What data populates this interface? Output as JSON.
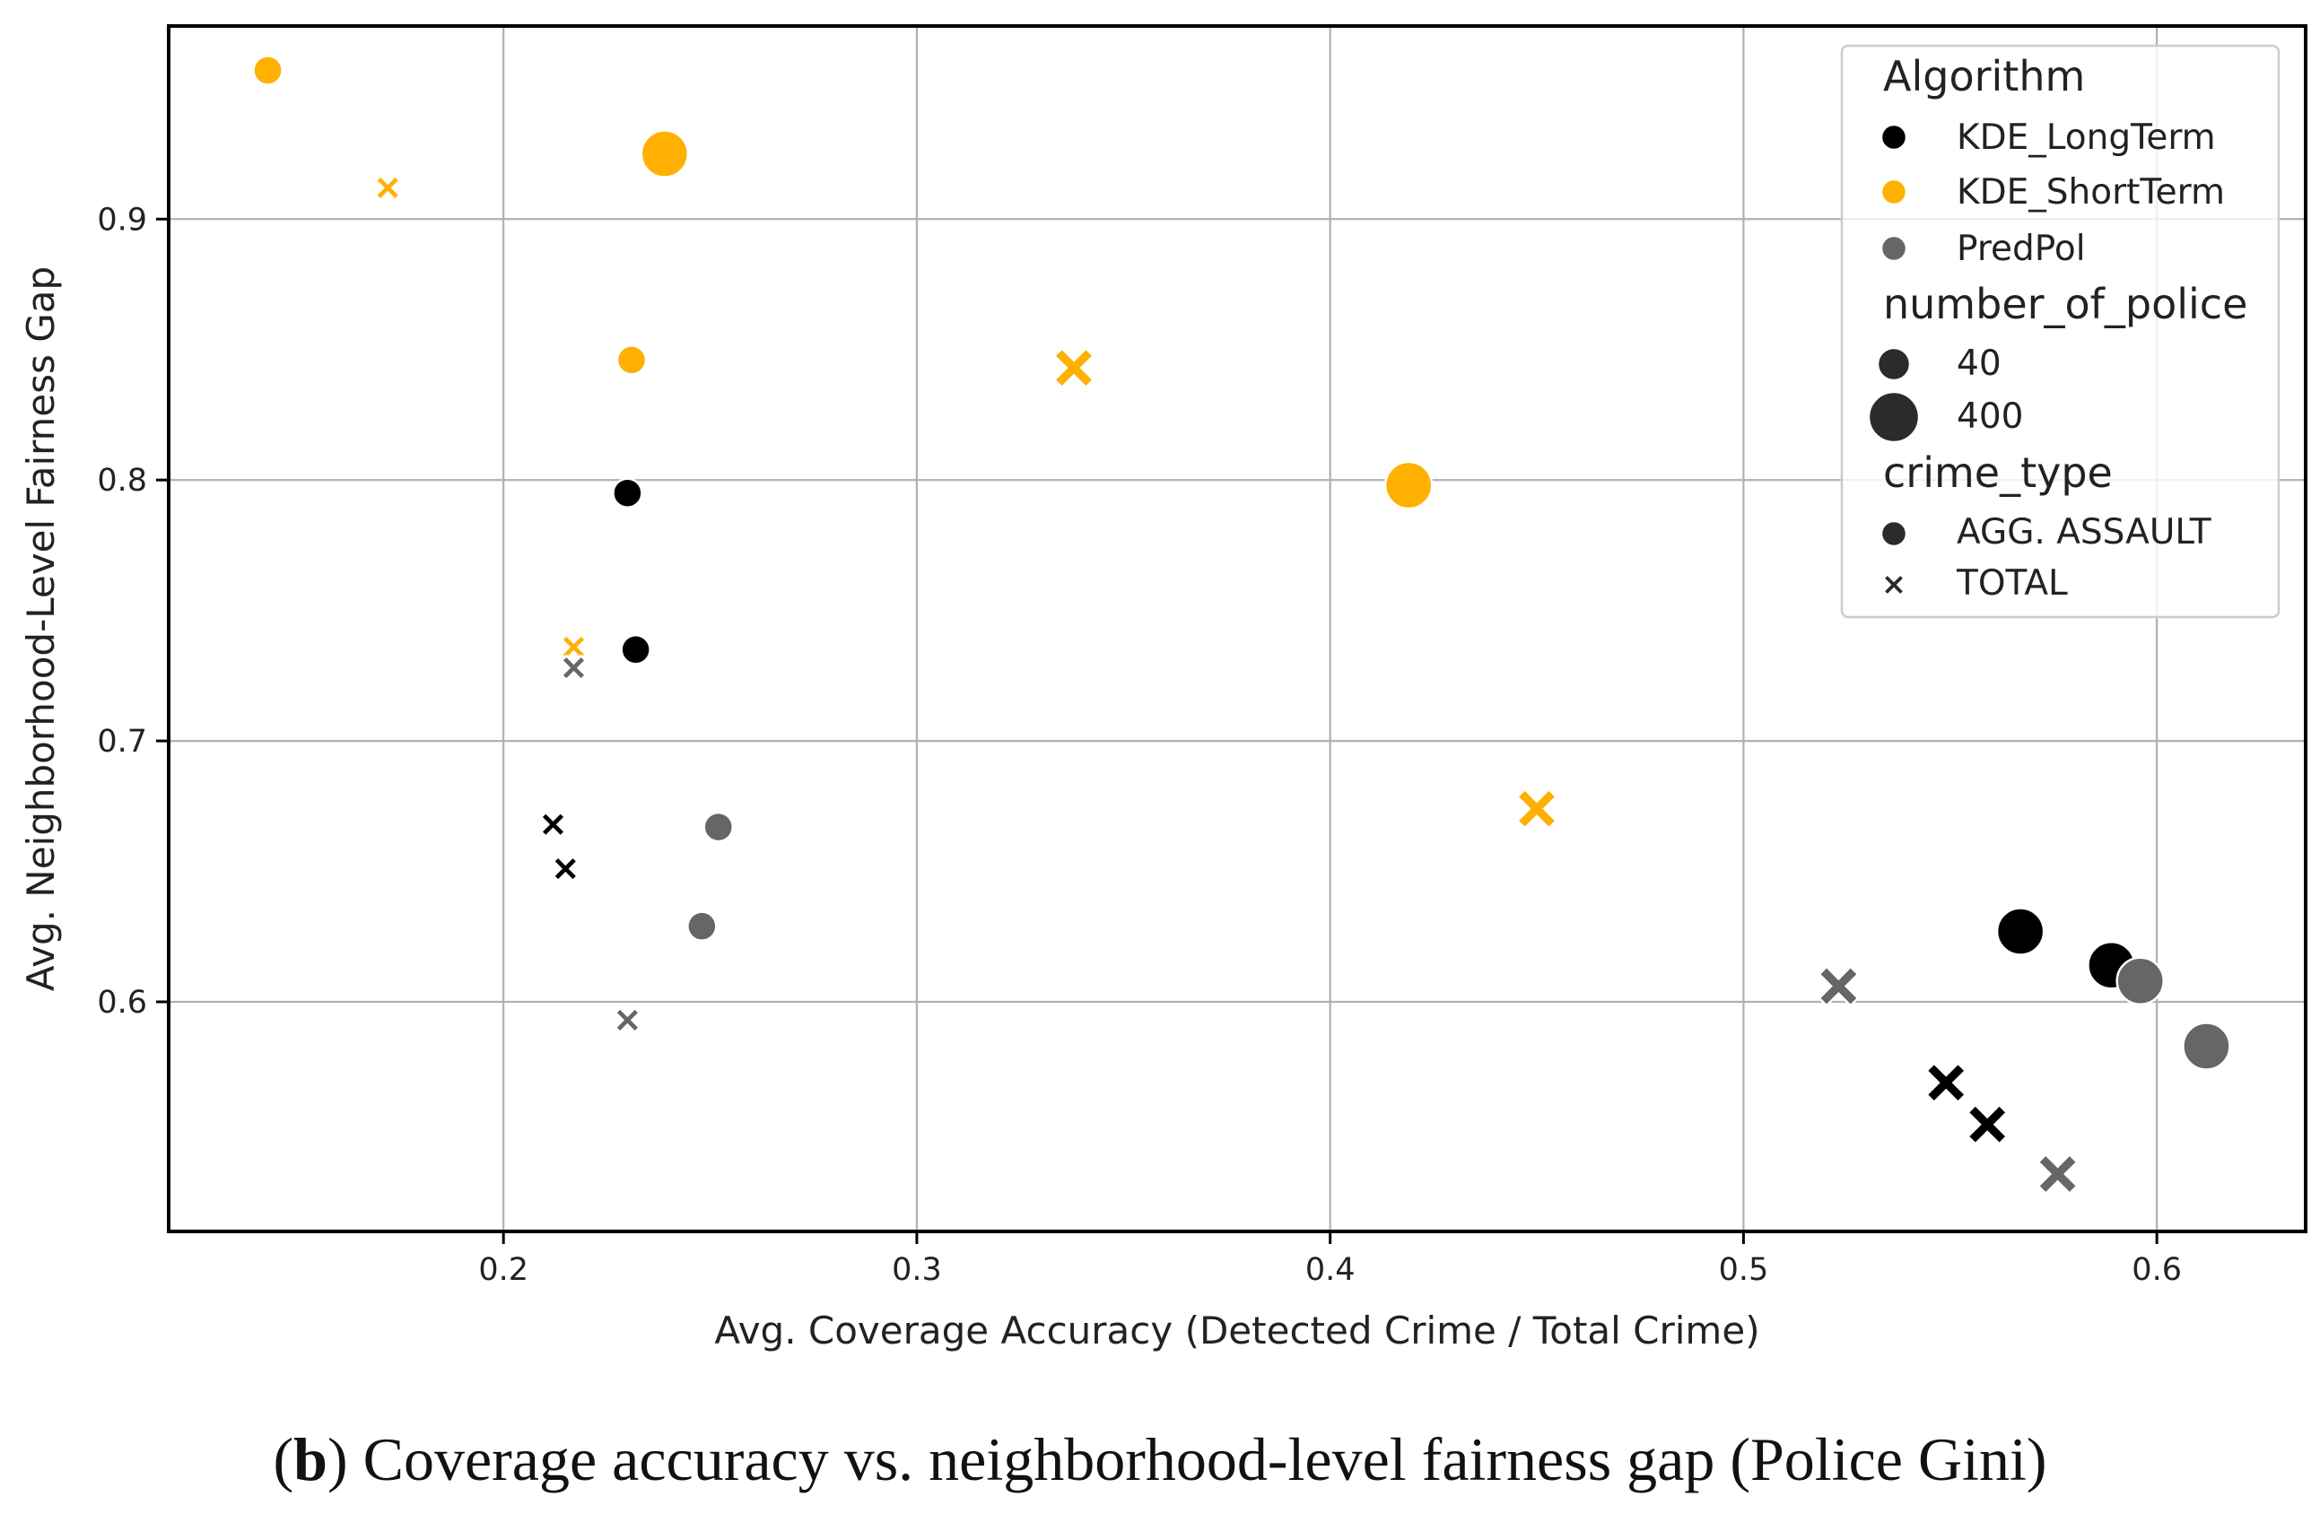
{
  "caption": {
    "open": "(",
    "letter": "b",
    "rest": ") Coverage accuracy vs. neighborhood-level fairness gap (Police Gini)"
  },
  "chart_data": {
    "type": "scatter",
    "title": "",
    "xlabel": "Avg. Coverage Accuracy (Detected Crime / Total Crime)",
    "ylabel": "Avg. Neighborhood-Level Fairness Gap",
    "xlim": [
      0.119,
      0.636
    ],
    "ylim": [
      0.512,
      0.974
    ],
    "xticks": [
      0.2,
      0.3,
      0.4,
      0.5,
      0.6
    ],
    "yticks": [
      0.6,
      0.7,
      0.8,
      0.9
    ],
    "xtick_labels": [
      "0.2",
      "0.3",
      "0.4",
      "0.5",
      "0.6"
    ],
    "ytick_labels": [
      "0.6",
      "0.7",
      "0.8",
      "0.9"
    ],
    "grid": true,
    "legend_position": "top-right",
    "colors": {
      "KDE_LongTerm": "#000000",
      "KDE_ShortTerm": "#FFB000",
      "PredPol": "#666666",
      "legend_marker": "#2b2b2b"
    },
    "legend": {
      "algorithm_title": "Algorithm",
      "algorithms": [
        "KDE_LongTerm",
        "KDE_ShortTerm",
        "PredPol"
      ],
      "size_title": "number_of_police",
      "sizes": [
        "40",
        "400"
      ],
      "style_title": "crime_type",
      "styles": [
        "AGG. ASSAULT",
        "TOTAL"
      ]
    },
    "points": [
      {
        "algorithm": "KDE_ShortTerm",
        "police": 40,
        "crime_type": "AGG. ASSAULT",
        "x": 0.143,
        "y": 0.957
      },
      {
        "algorithm": "KDE_ShortTerm",
        "police": 40,
        "crime_type": "TOTAL",
        "x": 0.172,
        "y": 0.912
      },
      {
        "algorithm": "KDE_ShortTerm",
        "police": 400,
        "crime_type": "AGG. ASSAULT",
        "x": 0.239,
        "y": 0.925
      },
      {
        "algorithm": "KDE_ShortTerm",
        "police": 40,
        "crime_type": "AGG. ASSAULT",
        "x": 0.231,
        "y": 0.846
      },
      {
        "algorithm": "KDE_ShortTerm",
        "police": 400,
        "crime_type": "TOTAL",
        "x": 0.338,
        "y": 0.843
      },
      {
        "algorithm": "KDE_ShortTerm",
        "police": 400,
        "crime_type": "AGG. ASSAULT",
        "x": 0.419,
        "y": 0.798
      },
      {
        "algorithm": "KDE_ShortTerm",
        "police": 40,
        "crime_type": "TOTAL",
        "x": 0.217,
        "y": 0.736
      },
      {
        "algorithm": "KDE_ShortTerm",
        "police": 400,
        "crime_type": "TOTAL",
        "x": 0.45,
        "y": 0.674
      },
      {
        "algorithm": "KDE_LongTerm",
        "police": 40,
        "crime_type": "AGG. ASSAULT",
        "x": 0.23,
        "y": 0.795
      },
      {
        "algorithm": "KDE_LongTerm",
        "police": 40,
        "crime_type": "AGG. ASSAULT",
        "x": 0.232,
        "y": 0.735
      },
      {
        "algorithm": "KDE_LongTerm",
        "police": 40,
        "crime_type": "TOTAL",
        "x": 0.212,
        "y": 0.668
      },
      {
        "algorithm": "KDE_LongTerm",
        "police": 40,
        "crime_type": "TOTAL",
        "x": 0.215,
        "y": 0.651
      },
      {
        "algorithm": "KDE_LongTerm",
        "police": 400,
        "crime_type": "AGG. ASSAULT",
        "x": 0.567,
        "y": 0.627
      },
      {
        "algorithm": "KDE_LongTerm",
        "police": 400,
        "crime_type": "AGG. ASSAULT",
        "x": 0.589,
        "y": 0.614
      },
      {
        "algorithm": "KDE_LongTerm",
        "police": 400,
        "crime_type": "TOTAL",
        "x": 0.549,
        "y": 0.569
      },
      {
        "algorithm": "KDE_LongTerm",
        "police": 400,
        "crime_type": "TOTAL",
        "x": 0.559,
        "y": 0.553
      },
      {
        "algorithm": "PredPol",
        "police": 40,
        "crime_type": "TOTAL",
        "x": 0.217,
        "y": 0.728
      },
      {
        "algorithm": "PredPol",
        "police": 40,
        "crime_type": "AGG. ASSAULT",
        "x": 0.252,
        "y": 0.667
      },
      {
        "algorithm": "PredPol",
        "police": 40,
        "crime_type": "AGG. ASSAULT",
        "x": 0.248,
        "y": 0.629
      },
      {
        "algorithm": "PredPol",
        "police": 40,
        "crime_type": "TOTAL",
        "x": 0.23,
        "y": 0.593
      },
      {
        "algorithm": "PredPol",
        "police": 400,
        "crime_type": "TOTAL",
        "x": 0.523,
        "y": 0.606
      },
      {
        "algorithm": "PredPol",
        "police": 400,
        "crime_type": "AGG. ASSAULT",
        "x": 0.596,
        "y": 0.608
      },
      {
        "algorithm": "PredPol",
        "police": 400,
        "crime_type": "AGG. ASSAULT",
        "x": 0.612,
        "y": 0.583
      },
      {
        "algorithm": "PredPol",
        "police": 400,
        "crime_type": "TOTAL",
        "x": 0.576,
        "y": 0.534
      }
    ]
  }
}
